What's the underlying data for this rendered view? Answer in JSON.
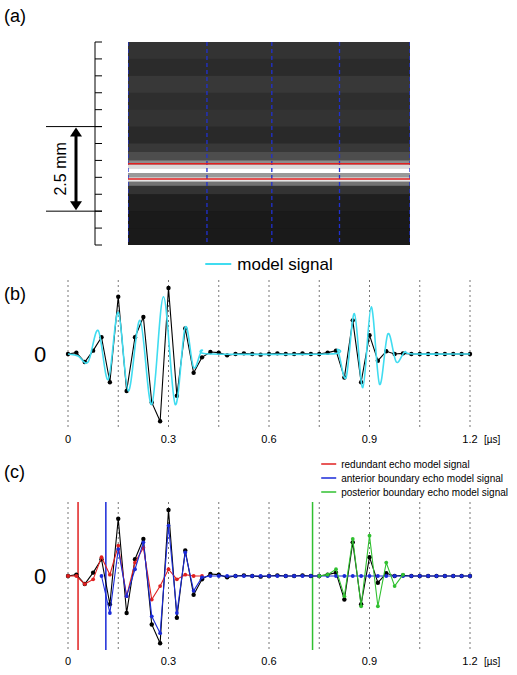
{
  "chart_data": [
    {
      "type": "image",
      "label": "(a)",
      "ylim": [
        0,
        6
      ],
      "yticks": [
        0,
        0.5,
        1,
        1.5,
        2,
        2.5,
        3,
        3.5,
        4,
        4.5,
        5,
        5.5,
        6
      ],
      "tick_labels": false,
      "major_ticks": [
        2.5,
        5
      ],
      "scale_bar": {
        "from": 2.5,
        "to": 5,
        "label": "2.5 mm"
      },
      "xlim": [
        0,
        100
      ],
      "bins": [
        0,
        0.5,
        1,
        1.5,
        2,
        2.5,
        3,
        3.25,
        3.5,
        3.625,
        3.75,
        3.875,
        4.0,
        4.125,
        4.25,
        4.5,
        5,
        5.5,
        6
      ],
      "values": [
        0.2,
        0.17,
        0.22,
        0.18,
        0.2,
        0.16,
        0.22,
        0.3,
        0.55,
        0.85,
        1.0,
        0.6,
        0.9,
        0.45,
        0.2,
        0.12,
        0.1,
        0.1
      ],
      "boundaries": [
        3.6,
        4.05
      ],
      "boundary_color": "#e02020",
      "columns": [
        0,
        28,
        51,
        75,
        100
      ],
      "column_color": "#2030d0"
    },
    {
      "type": "line",
      "label": "(b)",
      "x": [
        0,
        0.025,
        0.05,
        0.075,
        0.1,
        0.125,
        0.15,
        0.175,
        0.2,
        0.225,
        0.25,
        0.275,
        0.3,
        0.325,
        0.35,
        0.375,
        0.4,
        0.425,
        0.45,
        0.475,
        0.5,
        0.525,
        0.55,
        0.575,
        0.6,
        0.625,
        0.65,
        0.675,
        0.7,
        0.725,
        0.75,
        0.775,
        0.8,
        0.825,
        0.85,
        0.875,
        0.9,
        0.925,
        0.95,
        0.975,
        1.0,
        1.025,
        1.05,
        1.075,
        1.1,
        1.125,
        1.15,
        1.175,
        1.2
      ],
      "series": [
        {
          "color": "#000000",
          "marker": "circle",
          "line_style": "solid",
          "values": [
            0,
            0.02,
            -0.12,
            0.05,
            0.25,
            -0.42,
            0.85,
            -0.55,
            0.25,
            0.55,
            -0.72,
            -1.0,
            0.98,
            -0.62,
            0.38,
            -0.28,
            -0.05,
            0.03,
            0.02,
            -0.02,
            0,
            0.01,
            0,
            -0.01,
            0,
            0.01,
            0,
            0,
            0.01,
            0,
            0,
            0.02,
            0.05,
            -0.35,
            0.5,
            -0.42,
            0.28,
            -0.1,
            0.04,
            0,
            0.01,
            0,
            0,
            0,
            0,
            0,
            0,
            0,
            0
          ]
        },
        {
          "name": "model signal",
          "color": "#40dcf0",
          "marker": "none",
          "line_style": "smooth",
          "x": [
            0,
            0.03,
            0.06,
            0.09,
            0.12,
            0.15,
            0.18,
            0.215,
            0.25,
            0.285,
            0.32,
            0.35,
            0.375,
            0.4,
            0.43,
            0.78,
            0.805,
            0.83,
            0.855,
            0.88,
            0.905,
            0.93,
            0.955,
            0.98,
            1.005,
            1.03,
            1.2
          ],
          "values": [
            0,
            -0.03,
            -0.12,
            0.35,
            -0.38,
            0.62,
            -0.55,
            0.5,
            -0.75,
            0.85,
            -0.75,
            0.4,
            -0.2,
            0.05,
            0,
            0,
            0.05,
            -0.35,
            0.6,
            -0.5,
            0.7,
            -0.45,
            0.3,
            -0.12,
            0.03,
            0,
            0
          ]
        }
      ],
      "xlim": [
        0,
        1.2
      ],
      "xticks": [
        0,
        0.3,
        0.6,
        0.9,
        1.2
      ],
      "minor_xticks": [
        0.15,
        0.45,
        0.75,
        1.05
      ],
      "x_unit": "[µs]",
      "ylim": [
        -1.1,
        1.1
      ],
      "yticks": [
        0
      ],
      "grid": true,
      "legend": "top"
    },
    {
      "type": "line",
      "label": "(c)",
      "x": [
        0,
        0.025,
        0.05,
        0.075,
        0.1,
        0.125,
        0.15,
        0.175,
        0.2,
        0.225,
        0.25,
        0.275,
        0.3,
        0.325,
        0.35,
        0.375,
        0.4,
        0.425,
        0.45,
        0.475,
        0.5,
        0.525,
        0.55,
        0.575,
        0.6,
        0.625,
        0.65,
        0.675,
        0.7,
        0.725,
        0.75,
        0.775,
        0.8,
        0.825,
        0.85,
        0.875,
        0.9,
        0.925,
        0.95,
        0.975,
        1.0,
        1.025,
        1.05,
        1.075,
        1.1,
        1.125,
        1.15,
        1.175,
        1.2
      ],
      "series": [
        {
          "color": "#000000",
          "marker": "circle",
          "line_style": "solid",
          "values": [
            0,
            0.02,
            -0.12,
            0.05,
            0.25,
            -0.42,
            0.85,
            -0.55,
            0.25,
            0.55,
            -0.72,
            -1.0,
            0.98,
            -0.62,
            0.38,
            -0.28,
            -0.05,
            0.03,
            0.02,
            -0.02,
            0,
            0.01,
            0,
            -0.01,
            0,
            0.01,
            0,
            0,
            0.01,
            0,
            0,
            0.02,
            0.05,
            -0.35,
            0.5,
            -0.42,
            0.28,
            -0.1,
            0.04,
            0,
            0.01,
            0,
            0,
            0,
            0,
            0,
            0,
            0,
            0
          ]
        },
        {
          "name": "redundant echo model signal",
          "color": "#e02020",
          "marker": "circle",
          "line_style": "solid",
          "onset": 0.03,
          "values": [
            0,
            0,
            -0.12,
            -0.05,
            0.28,
            0.02,
            0.45,
            -0.3,
            0.2,
            0.42,
            -0.35,
            -0.15,
            0.1,
            -0.05,
            0.02,
            0,
            0,
            null,
            null,
            null,
            null,
            null,
            null,
            null,
            null,
            null,
            null,
            null,
            null,
            null,
            null,
            null,
            null,
            null,
            null,
            null,
            null,
            null,
            null,
            null,
            null,
            null,
            null,
            null,
            null,
            null,
            null,
            null,
            null
          ]
        },
        {
          "name": "anterior boundary echo model signal",
          "color": "#1a2ad8",
          "marker": "circle",
          "line_style": "solid",
          "onset": 0.113,
          "values": [
            null,
            null,
            null,
            null,
            0,
            -0.55,
            0.4,
            -0.3,
            0.1,
            0.5,
            -0.6,
            -0.85,
            0.75,
            -0.55,
            0.35,
            -0.22,
            -0.02,
            0,
            0,
            0,
            0,
            0,
            0,
            0,
            0,
            0,
            0,
            0,
            0,
            0,
            0,
            0,
            0,
            0,
            0,
            0,
            0,
            0,
            0,
            0,
            0,
            0,
            0,
            0,
            0,
            0,
            0,
            0,
            0
          ]
        },
        {
          "name": "posterior boundary echo model signal",
          "color": "#30c030",
          "marker": "circle",
          "line_style": "solid",
          "onset": 0.73,
          "values": [
            null,
            null,
            null,
            null,
            null,
            null,
            null,
            null,
            null,
            null,
            null,
            null,
            null,
            null,
            null,
            null,
            null,
            null,
            null,
            null,
            null,
            null,
            null,
            null,
            null,
            null,
            null,
            null,
            null,
            null,
            0,
            0.02,
            0.1,
            -0.3,
            0.55,
            -0.45,
            0.6,
            -0.45,
            0.2,
            -0.15,
            0.02,
            null,
            null,
            null,
            null,
            null,
            null,
            null,
            null
          ]
        }
      ],
      "xlim": [
        0,
        1.2
      ],
      "xticks": [
        0,
        0.3,
        0.6,
        0.9,
        1.2
      ],
      "minor_xticks": [
        0.15,
        0.45,
        0.75,
        1.05
      ],
      "x_unit": "[µs]",
      "ylim": [
        -1.1,
        1.1
      ],
      "yticks": [
        0
      ],
      "grid": true,
      "legend": "top-right"
    }
  ]
}
